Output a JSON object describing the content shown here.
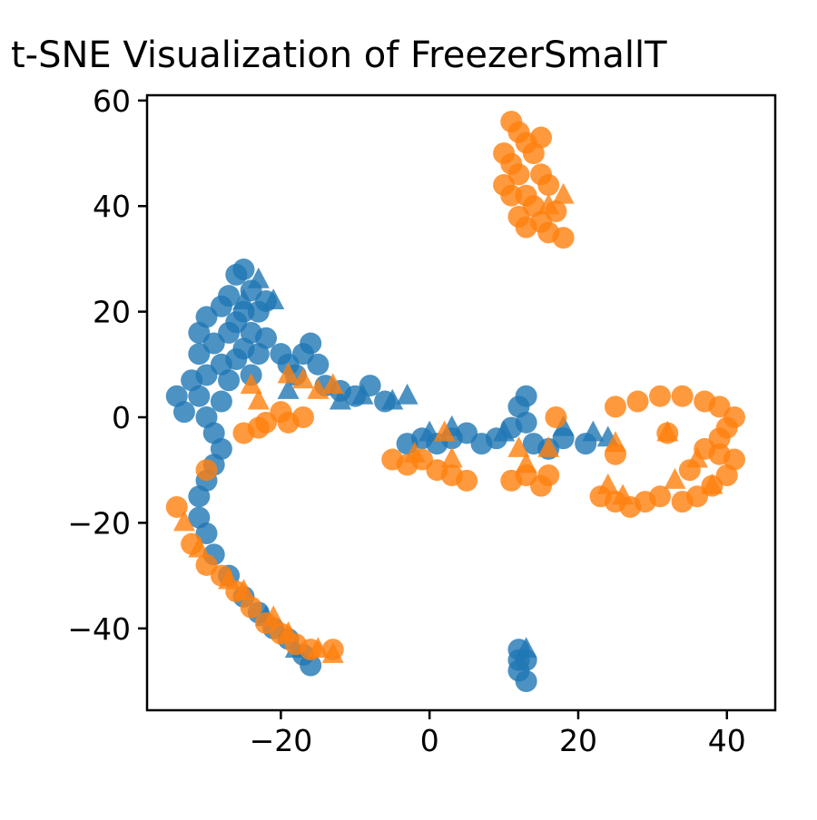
{
  "chart_data": {
    "type": "scatter",
    "title": "t-SNE Visualization of FreezerSmallT",
    "xlabel": "",
    "ylabel": "",
    "xlim": [
      -38,
      46.5
    ],
    "ylim": [
      -55.5,
      61
    ],
    "xticks": [
      -20,
      0,
      20,
      40
    ],
    "yticks": [
      -40,
      -20,
      0,
      20,
      40,
      60
    ],
    "xtick_labels": [
      "−20",
      "0",
      "20",
      "40"
    ],
    "ytick_labels": [
      "−40",
      "−20",
      "0",
      "20",
      "40",
      "60"
    ],
    "grid": false,
    "legend": "none",
    "series": [
      {
        "color": "#1f77b4",
        "marker": "circle",
        "points": [
          [
            -34,
            4
          ],
          [
            -33,
            1
          ],
          [
            -32,
            7
          ],
          [
            -31,
            16
          ],
          [
            -31,
            12
          ],
          [
            -31,
            4
          ],
          [
            -30,
            19
          ],
          [
            -30,
            8
          ],
          [
            -30,
            0
          ],
          [
            -29,
            14
          ],
          [
            -29,
            -3
          ],
          [
            -28,
            21
          ],
          [
            -28,
            10
          ],
          [
            -28,
            3
          ],
          [
            -27,
            23
          ],
          [
            -27,
            16
          ],
          [
            -27,
            7
          ],
          [
            -26,
            27
          ],
          [
            -26,
            18
          ],
          [
            -26,
            11
          ],
          [
            -25,
            28
          ],
          [
            -25,
            20
          ],
          [
            -25,
            13
          ],
          [
            -24,
            24
          ],
          [
            -24,
            16
          ],
          [
            -24,
            8
          ],
          [
            -23,
            20
          ],
          [
            -23,
            12
          ],
          [
            -22,
            22
          ],
          [
            -22,
            15
          ],
          [
            -20,
            12
          ],
          [
            -19,
            10
          ],
          [
            -18,
            8
          ],
          [
            -17,
            12
          ],
          [
            -16,
            14
          ],
          [
            -15,
            10
          ],
          [
            -14,
            6
          ],
          [
            -12,
            5
          ],
          [
            -10,
            4
          ],
          [
            -8,
            6
          ],
          [
            -6,
            3
          ],
          [
            -28,
            -6
          ],
          [
            -29,
            -9
          ],
          [
            -30,
            -12
          ],
          [
            -31,
            -15
          ],
          [
            -31,
            -19
          ],
          [
            -30,
            -22
          ],
          [
            -29,
            -26
          ],
          [
            -27,
            -30
          ],
          [
            -25,
            -34
          ],
          [
            -23,
            -37
          ],
          [
            -21,
            -40
          ],
          [
            -19,
            -42
          ],
          [
            -17,
            -45
          ],
          [
            -16,
            -47
          ],
          [
            -3,
            -5
          ],
          [
            -1,
            -4
          ],
          [
            1,
            -5
          ],
          [
            3,
            -4
          ],
          [
            5,
            -3
          ],
          [
            7,
            -5
          ],
          [
            9,
            -4
          ],
          [
            11,
            -2
          ],
          [
            12,
            2
          ],
          [
            13,
            4
          ],
          [
            13,
            -1
          ],
          [
            14,
            -5
          ],
          [
            16,
            -6
          ],
          [
            18,
            -4
          ],
          [
            21,
            -5
          ],
          [
            12,
            -44
          ],
          [
            13,
            -46
          ],
          [
            12,
            -48
          ],
          [
            13,
            -50
          ],
          [
            12,
            -46
          ]
        ]
      },
      {
        "color": "#1f77b4",
        "marker": "triangle",
        "points": [
          [
            -23,
            26
          ],
          [
            -21,
            22
          ],
          [
            -25,
            22
          ],
          [
            -19,
            5
          ],
          [
            -12,
            3
          ],
          [
            -9,
            4
          ],
          [
            -5,
            3
          ],
          [
            -3,
            4
          ],
          [
            0,
            -3
          ],
          [
            3,
            -2
          ],
          [
            10,
            -3
          ],
          [
            18,
            -2
          ],
          [
            22,
            -3
          ],
          [
            24,
            -4
          ],
          [
            -22,
            -38
          ],
          [
            -18,
            -44
          ],
          [
            13,
            -44
          ]
        ]
      },
      {
        "color": "#ff7f0e",
        "marker": "circle",
        "points": [
          [
            11,
            56
          ],
          [
            12,
            54
          ],
          [
            10,
            50
          ],
          [
            11,
            48
          ],
          [
            13,
            52
          ],
          [
            14,
            50
          ],
          [
            15,
            46
          ],
          [
            12,
            46
          ],
          [
            10,
            44
          ],
          [
            11,
            42
          ],
          [
            13,
            42
          ],
          [
            16,
            44
          ],
          [
            14,
            40
          ],
          [
            12,
            38
          ],
          [
            15,
            37
          ],
          [
            17,
            39
          ],
          [
            16,
            35
          ],
          [
            18,
            34
          ],
          [
            13,
            36
          ],
          [
            15,
            53
          ],
          [
            -25,
            -3
          ],
          [
            -23,
            -2
          ],
          [
            -22,
            -1
          ],
          [
            -20,
            1
          ],
          [
            -19,
            -1
          ],
          [
            -17,
            0
          ],
          [
            -30,
            -10
          ],
          [
            -34,
            -17
          ],
          [
            -5,
            -8
          ],
          [
            -3,
            -9
          ],
          [
            -1,
            -8
          ],
          [
            1,
            -10
          ],
          [
            3,
            -11
          ],
          [
            5,
            -12
          ],
          [
            11,
            -12
          ],
          [
            13,
            -11
          ],
          [
            15,
            -13
          ],
          [
            16,
            -11
          ],
          [
            17,
            0
          ],
          [
            25,
            -7
          ],
          [
            23,
            -15
          ],
          [
            25,
            -16
          ],
          [
            27,
            -17
          ],
          [
            29,
            -16
          ],
          [
            31,
            -15
          ],
          [
            34,
            -16
          ],
          [
            36,
            -15
          ],
          [
            38,
            -13
          ],
          [
            40,
            -11
          ],
          [
            41,
            -8
          ],
          [
            39,
            -7
          ],
          [
            37,
            -6
          ],
          [
            39,
            -4
          ],
          [
            40,
            -2
          ],
          [
            41,
            0
          ],
          [
            39,
            2
          ],
          [
            37,
            3
          ],
          [
            34,
            4
          ],
          [
            31,
            4
          ],
          [
            28,
            3
          ],
          [
            25,
            2
          ],
          [
            32,
            -3
          ],
          [
            35,
            -10
          ],
          [
            -32,
            -24
          ],
          [
            -30,
            -28
          ],
          [
            -28,
            -30
          ],
          [
            -26,
            -33
          ],
          [
            -24,
            -36
          ],
          [
            -22,
            -39
          ],
          [
            -20,
            -41
          ],
          [
            -18,
            -43
          ],
          [
            -16,
            -44
          ],
          [
            -13,
            -44
          ]
        ]
      },
      {
        "color": "#ff7f0e",
        "marker": "triangle",
        "points": [
          [
            16,
            40
          ],
          [
            18,
            42
          ],
          [
            -24,
            6
          ],
          [
            -23,
            3
          ],
          [
            -19,
            8
          ],
          [
            -17,
            7
          ],
          [
            -15,
            5
          ],
          [
            -13,
            6
          ],
          [
            2,
            -3
          ],
          [
            -2,
            -7
          ],
          [
            3,
            -8
          ],
          [
            12,
            -6
          ],
          [
            13,
            -9
          ],
          [
            16,
            -6
          ],
          [
            25,
            -5
          ],
          [
            24,
            -13
          ],
          [
            26,
            -15
          ],
          [
            32,
            -3
          ],
          [
            33,
            -12
          ],
          [
            38,
            -13
          ],
          [
            36,
            -8
          ],
          [
            -33,
            -20
          ],
          [
            -31,
            -25
          ],
          [
            -27,
            -31
          ],
          [
            -25,
            -33
          ],
          [
            -21,
            -38
          ],
          [
            -19,
            -41
          ],
          [
            -15,
            -44
          ],
          [
            -13,
            -45
          ]
        ]
      }
    ]
  }
}
